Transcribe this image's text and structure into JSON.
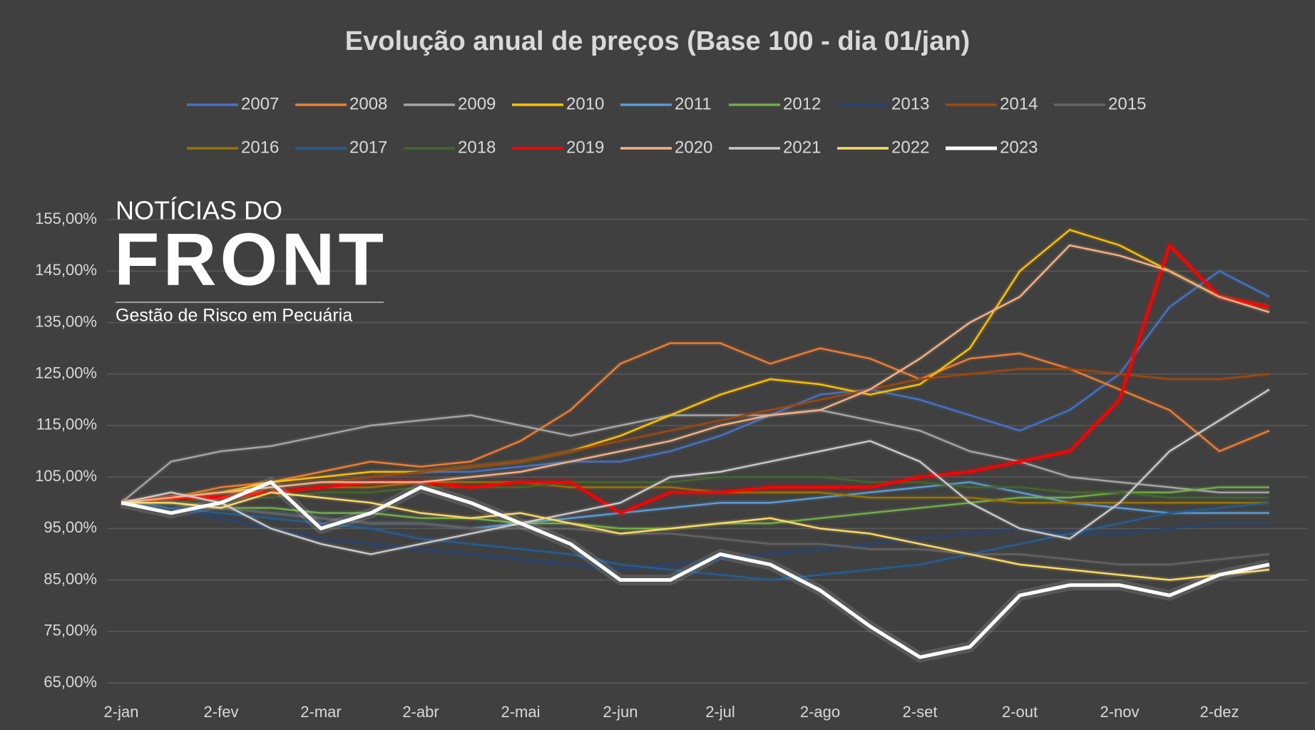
{
  "chart_data": {
    "type": "line",
    "title": "Evolução anual de preços (Base 100 - dia 01/jan)",
    "logo": {
      "line1": "NOTÍCIAS DO",
      "line2": "FRONT",
      "tagline": "Gestão de Risco em Pecuária"
    },
    "categories": [
      "2-jan",
      null,
      "2-fev",
      null,
      "2-mar",
      null,
      "2-abr",
      null,
      "2-mai",
      null,
      "2-jun",
      null,
      "2-jul",
      null,
      "2-ago",
      null,
      "2-set",
      null,
      "2-out",
      null,
      "2-nov",
      null,
      "2-dez",
      null
    ],
    "ylim": [
      65,
      155
    ],
    "yticks": [
      {
        "value": 65,
        "label": "65,00%"
      },
      {
        "value": 75,
        "label": "75,00%"
      },
      {
        "value": 85,
        "label": "85,00%"
      },
      {
        "value": 95,
        "label": "95,00%"
      },
      {
        "value": 105,
        "label": "105,00%"
      },
      {
        "value": 115,
        "label": "115,00%"
      },
      {
        "value": 125,
        "label": "125,00%"
      },
      {
        "value": 135,
        "label": "135,00%"
      },
      {
        "value": 145,
        "label": "145,00%"
      },
      {
        "value": 155,
        "label": "155,00%"
      }
    ],
    "grid": true,
    "series": [
      {
        "name": "2007",
        "color": "#4472c4",
        "width": 2.5,
        "values": [
          100,
          101,
          102,
          103,
          104,
          105,
          106,
          106,
          107,
          108,
          108,
          110,
          113,
          117,
          121,
          122,
          120,
          117,
          114,
          118,
          125,
          138,
          145,
          140
        ]
      },
      {
        "name": "2008",
        "color": "#ed7d31",
        "width": 2.5,
        "values": [
          100,
          101,
          103,
          104,
          106,
          108,
          107,
          108,
          112,
          118,
          127,
          131,
          131,
          127,
          130,
          128,
          124,
          128,
          129,
          126,
          122,
          118,
          110,
          114
        ]
      },
      {
        "name": "2009",
        "color": "#a5a5a5",
        "width": 2.5,
        "values": [
          100,
          108,
          110,
          111,
          113,
          115,
          116,
          117,
          115,
          113,
          115,
          117,
          117,
          117,
          118,
          116,
          114,
          110,
          108,
          105,
          104,
          103,
          102,
          102
        ]
      },
      {
        "name": "2010",
        "color": "#ffc000",
        "width": 2.5,
        "values": [
          100,
          101,
          102,
          104,
          105,
          106,
          106,
          107,
          108,
          110,
          113,
          117,
          121,
          124,
          123,
          121,
          123,
          130,
          145,
          153,
          150,
          145,
          140,
          138
        ]
      },
      {
        "name": "2011",
        "color": "#5b9bd5",
        "width": 2.5,
        "values": [
          100,
          100,
          99,
          98,
          97,
          96,
          96,
          95,
          96,
          97,
          98,
          99,
          100,
          100,
          101,
          102,
          103,
          104,
          102,
          100,
          99,
          98,
          98,
          98
        ]
      },
      {
        "name": "2012",
        "color": "#70ad47",
        "width": 2.5,
        "values": [
          100,
          100,
          99,
          99,
          98,
          98,
          97,
          97,
          96,
          96,
          95,
          95,
          96,
          96,
          97,
          98,
          99,
          100,
          101,
          101,
          102,
          102,
          103,
          103
        ]
      },
      {
        "name": "2013",
        "color": "#264478",
        "width": 2.5,
        "values": [
          100,
          99,
          97,
          95,
          93,
          92,
          91,
          90,
          89,
          88,
          87,
          88,
          89,
          90,
          91,
          92,
          93,
          94,
          95,
          94,
          94,
          95,
          96,
          96
        ]
      },
      {
        "name": "2014",
        "color": "#9e480e",
        "width": 2.5,
        "values": [
          100,
          101,
          102,
          103,
          104,
          105,
          106,
          107,
          108,
          110,
          112,
          114,
          116,
          118,
          120,
          122,
          124,
          125,
          126,
          126,
          125,
          124,
          124,
          125
        ]
      },
      {
        "name": "2015",
        "color": "#636363",
        "width": 2.5,
        "values": [
          100,
          100,
          99,
          98,
          97,
          96,
          96,
          95,
          95,
          95,
          94,
          94,
          93,
          92,
          92,
          91,
          91,
          90,
          90,
          89,
          88,
          88,
          89,
          90
        ]
      },
      {
        "name": "2016",
        "color": "#997300",
        "width": 2.5,
        "values": [
          100,
          101,
          102,
          102,
          103,
          103,
          104,
          104,
          104,
          103,
          103,
          103,
          102,
          102,
          102,
          101,
          101,
          101,
          100,
          100,
          100,
          100,
          100,
          100
        ]
      },
      {
        "name": "2017",
        "color": "#255e91",
        "width": 2.5,
        "values": [
          100,
          99,
          98,
          97,
          96,
          95,
          93,
          92,
          91,
          90,
          88,
          87,
          86,
          85,
          86,
          87,
          88,
          90,
          92,
          94,
          96,
          98,
          99,
          100
        ]
      },
      {
        "name": "2018",
        "color": "#43682b",
        "width": 2.5,
        "values": [
          100,
          100,
          101,
          101,
          102,
          102,
          103,
          103,
          103,
          104,
          104,
          104,
          105,
          105,
          105,
          104,
          104,
          103,
          103,
          102,
          102,
          101,
          101,
          101
        ]
      },
      {
        "name": "2019",
        "color": "#ff0000",
        "width": 4,
        "values": [
          100,
          101,
          101,
          102,
          103,
          104,
          104,
          103,
          104,
          104,
          98,
          102,
          102,
          103,
          103,
          103,
          105,
          106,
          108,
          110,
          120,
          150,
          140,
          138
        ]
      },
      {
        "name": "2020",
        "color": "#f4b183",
        "width": 2.5,
        "values": [
          100,
          101,
          102,
          103,
          104,
          104,
          104,
          105,
          106,
          108,
          110,
          112,
          115,
          117,
          118,
          122,
          128,
          135,
          140,
          150,
          148,
          145,
          140,
          137
        ]
      },
      {
        "name": "2021",
        "color": "#c9c9c9",
        "width": 2.5,
        "values": [
          100,
          102,
          100,
          95,
          92,
          90,
          92,
          94,
          96,
          98,
          100,
          105,
          106,
          108,
          110,
          112,
          108,
          100,
          95,
          93,
          100,
          110,
          116,
          122
        ]
      },
      {
        "name": "2022",
        "color": "#ffd966",
        "width": 2.5,
        "values": [
          100,
          100,
          99,
          102,
          101,
          100,
          98,
          97,
          98,
          96,
          94,
          95,
          96,
          97,
          95,
          94,
          92,
          90,
          88,
          87,
          86,
          85,
          86,
          87
        ]
      },
      {
        "name": "2023",
        "color": "#ffffff",
        "width": 5,
        "values": [
          100,
          98,
          100,
          104,
          95,
          98,
          103,
          100,
          96,
          92,
          85,
          85,
          90,
          88,
          83,
          76,
          70,
          72,
          82,
          84,
          84,
          82,
          86,
          88
        ]
      }
    ]
  }
}
